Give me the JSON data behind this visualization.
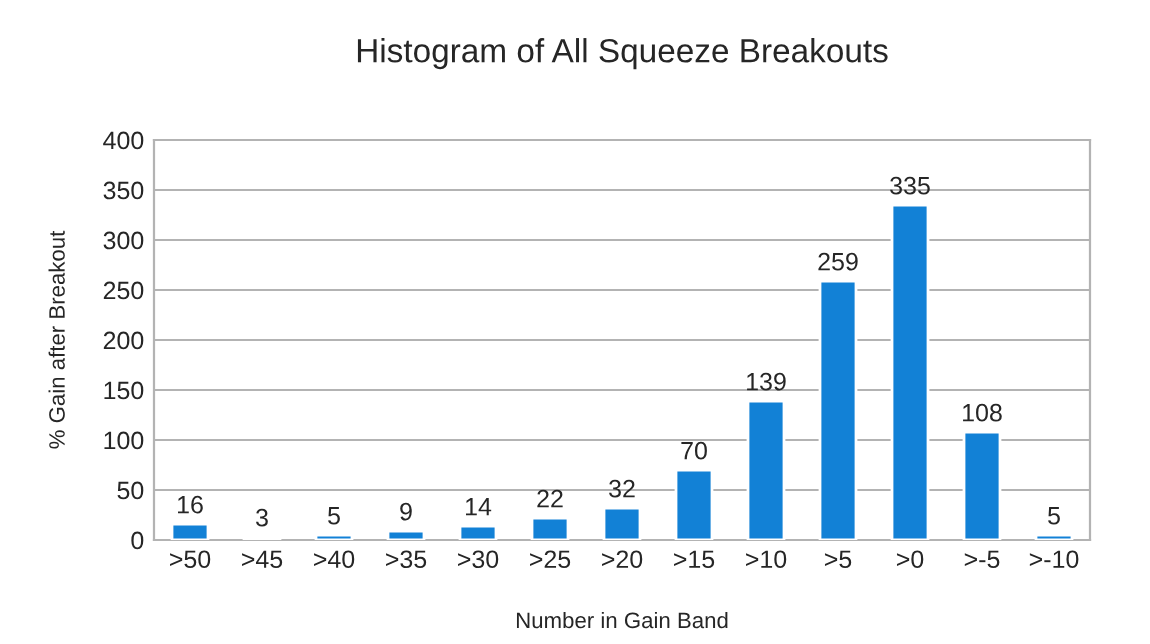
{
  "chart_data": {
    "type": "bar",
    "title": "Histogram of All Squeeze Breakouts",
    "xlabel": "Number in Gain Band",
    "ylabel": "% Gain after Breakout",
    "categories": [
      ">50",
      ">45",
      ">40",
      ">35",
      ">30",
      ">25",
      ">20",
      ">15",
      ">10",
      ">5",
      ">0",
      ">-5",
      ">-10"
    ],
    "values": [
      16,
      3,
      5,
      9,
      14,
      22,
      32,
      70,
      139,
      259,
      335,
      108,
      5
    ],
    "color": "#1281d6",
    "ylim": [
      0,
      400
    ],
    "yticks": [
      0,
      50,
      100,
      150,
      200,
      250,
      300,
      350,
      400
    ],
    "grid": "y",
    "data_labels": true
  }
}
